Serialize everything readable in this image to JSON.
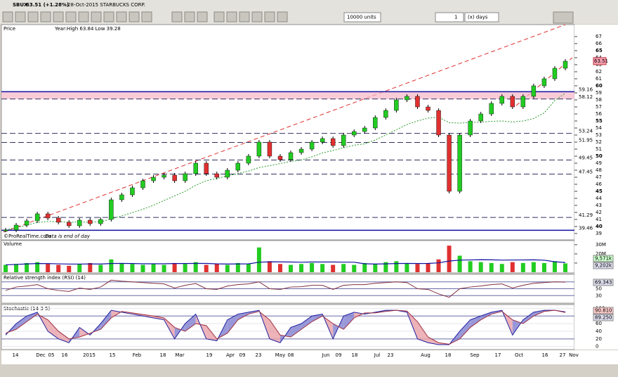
{
  "toolbar": {
    "symbol": "SBUX",
    "quote": "63.51 (+1.28%)",
    "date_name": "28-Oct-2015 STARBUCKS CORP.",
    "units": "10000 units",
    "period_count": "1",
    "period_unit": "(x) days"
  },
  "price_panel": {
    "title": "Price",
    "year_range": "Year:High 63.84 Low 39.28",
    "credit": "©ProRealTime.com",
    "note": "Data is end of day",
    "last_label": "63.51",
    "last_value": 63.51,
    "levels": [
      {
        "value": 59.16,
        "label": "59.16"
      },
      {
        "value": 58.12,
        "label": "58.12"
      },
      {
        "value": 53.24,
        "label": "53.24"
      },
      {
        "value": 51.95,
        "label": "51.95"
      },
      {
        "value": 49.45,
        "label": "49.45"
      },
      {
        "value": 47.45,
        "label": "47.45"
      },
      {
        "value": 41.29,
        "label": "41.29"
      },
      {
        "value": 39.46,
        "label": "39.46"
      }
    ],
    "ylim": [
      38.2,
      68.2
    ],
    "yticks": [
      39,
      40,
      41,
      42,
      43,
      44,
      45,
      46,
      47,
      48,
      49,
      50,
      51,
      52,
      53,
      54,
      55,
      56,
      57,
      58,
      59,
      60,
      61,
      62,
      63,
      64,
      65,
      66,
      67
    ],
    "close": [
      39.5,
      40.2,
      40.8,
      41.8,
      41.2,
      40.6,
      40.1,
      40.9,
      40.4,
      41.0,
      43.8,
      44.5,
      45.5,
      46.5,
      47.0,
      47.3,
      46.5,
      47.5,
      49.0,
      47.5,
      47.0,
      48.0,
      49.0,
      50.0,
      52.0,
      50.0,
      49.5,
      50.5,
      51.0,
      52.0,
      52.5,
      51.5,
      53.0,
      53.5,
      54.0,
      55.5,
      56.5,
      58.0,
      58.5,
      57.0,
      56.5,
      53.0,
      45.0,
      53.0,
      55.0,
      56.0,
      57.5,
      58.5,
      57.0,
      58.5,
      60.0,
      61.0,
      62.5,
      63.5
    ]
  },
  "volume_panel": {
    "title": "Volume",
    "ylim": [
      0,
      33
    ],
    "yticks": [
      {
        "value": 10,
        "label": "10M"
      },
      {
        "value": 20,
        "label": "20M"
      },
      {
        "value": 30,
        "label": "30M"
      }
    ],
    "labels": [
      "9,571k",
      "9,202k"
    ],
    "values": [
      8,
      9,
      10,
      11,
      9,
      8,
      7,
      9,
      10,
      8,
      14,
      10,
      9,
      8,
      9,
      8,
      10,
      9,
      11,
      8,
      9,
      8,
      10,
      9,
      27,
      12,
      9,
      8,
      9,
      10,
      9,
      8,
      9,
      8,
      10,
      9,
      11,
      12,
      10,
      9,
      10,
      14,
      29,
      18,
      12,
      11,
      10,
      9,
      11,
      10,
      11,
      10,
      12,
      9.6
    ]
  },
  "rsi_panel": {
    "title": "Relative strength index (RSI) (14)",
    "ylim": [
      10,
      90
    ],
    "yticks": [
      30,
      50,
      70
    ],
    "value_label": "69.343",
    "values": [
      45,
      55,
      58,
      62,
      50,
      45,
      42,
      52,
      48,
      55,
      75,
      72,
      70,
      68,
      66,
      64,
      52,
      60,
      65,
      50,
      48,
      58,
      62,
      64,
      70,
      50,
      48,
      55,
      56,
      60,
      60,
      48,
      60,
      62,
      62,
      66,
      68,
      70,
      68,
      50,
      48,
      35,
      25,
      50,
      55,
      58,
      62,
      64,
      52,
      60,
      66,
      68,
      70,
      69.3
    ]
  },
  "stochastic_panel": {
    "title": "Stochastic (14 3 5)",
    "ylim": [
      -8,
      110
    ],
    "yticks": [
      0,
      20,
      40,
      60,
      80,
      100
    ],
    "labels": [
      "90.810",
      "89.250"
    ],
    "k": [
      30,
      60,
      80,
      90,
      40,
      20,
      10,
      50,
      30,
      60,
      95,
      90,
      85,
      80,
      75,
      70,
      20,
      60,
      85,
      20,
      15,
      70,
      85,
      90,
      95,
      20,
      10,
      50,
      60,
      80,
      85,
      20,
      80,
      90,
      85,
      90,
      95,
      95,
      90,
      20,
      10,
      5,
      5,
      40,
      70,
      80,
      90,
      95,
      30,
      70,
      90,
      95,
      95,
      90.8
    ],
    "d": [
      35,
      45,
      65,
      85,
      70,
      40,
      20,
      25,
      35,
      45,
      75,
      92,
      88,
      84,
      80,
      75,
      50,
      40,
      60,
      55,
      20,
      35,
      70,
      85,
      92,
      70,
      30,
      25,
      45,
      65,
      80,
      60,
      45,
      75,
      88,
      88,
      92,
      95,
      93,
      65,
      25,
      10,
      6,
      20,
      50,
      70,
      85,
      92,
      70,
      60,
      80,
      92,
      95,
      89.25
    ]
  },
  "x_axis": {
    "labels": [
      "14",
      "Dec",
      "05",
      "16",
      "2015",
      "15",
      "Feb",
      "18",
      "Mar",
      "19",
      "Apr",
      "09",
      "23",
      "May",
      "08",
      "Jun",
      "09",
      "18",
      "Jul",
      "23",
      "Aug",
      "18",
      "Sep",
      "17",
      "Oct",
      "16",
      "27",
      "Nov"
    ]
  }
}
